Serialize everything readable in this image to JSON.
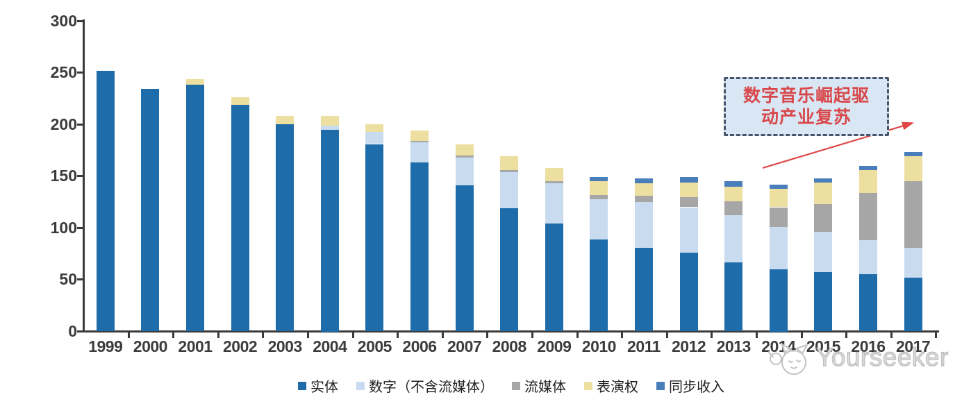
{
  "chart_data": {
    "type": "bar",
    "stacked": true,
    "title": "",
    "xlabel": "",
    "ylabel": "",
    "categories": [
      "1999",
      "2000",
      "2001",
      "2002",
      "2003",
      "2004",
      "2005",
      "2006",
      "2007",
      "2008",
      "2009",
      "2010",
      "2011",
      "2012",
      "2013",
      "2014",
      "2015",
      "2016",
      "2017"
    ],
    "series": [
      {
        "name": "实体",
        "color": "#1E6CA9",
        "values": [
          252,
          234,
          238,
          219,
          200,
          195,
          181,
          163,
          141,
          119,
          104,
          89,
          81,
          76,
          67,
          60,
          57,
          55,
          52
        ]
      },
      {
        "name": "数字（不含流媒体）",
        "color": "#C9DCEF",
        "values": [
          0,
          0,
          0,
          0,
          0,
          4,
          12,
          20,
          27,
          35,
          39,
          39,
          44,
          44,
          45,
          41,
          39,
          33,
          29
        ]
      },
      {
        "name": "流媒体",
        "color": "#A6A6A6",
        "values": [
          0,
          0,
          0,
          0,
          0,
          0,
          0,
          1,
          2,
          2,
          2,
          4,
          6,
          10,
          14,
          19,
          27,
          46,
          64
        ]
      },
      {
        "name": "表演权",
        "color": "#EDDFA0",
        "values": [
          0,
          0,
          6,
          7,
          8,
          9,
          7,
          10,
          11,
          13,
          13,
          13,
          12,
          14,
          14,
          18,
          21,
          22,
          24
        ]
      },
      {
        "name": "同步收入",
        "color": "#4A7EBB",
        "values": [
          0,
          0,
          0,
          0,
          0,
          0,
          0,
          0,
          0,
          0,
          0,
          4,
          5,
          5,
          5,
          4,
          4,
          4,
          4
        ]
      }
    ],
    "ylim": [
      0,
      300
    ],
    "yticks": [
      0,
      50,
      100,
      150,
      200,
      250,
      300
    ],
    "grid": false,
    "legend_position": "bottom"
  },
  "annotation": {
    "line1": "数字音乐崛起驱",
    "line2": "动产业复苏"
  },
  "watermark": {
    "brand": "Yourseeker"
  },
  "colors": {
    "annotation_text": "#D8484A",
    "annotation_bg": "#D9E6F3",
    "annotation_border": "#44546A",
    "arrow": "#E04545",
    "axis": "#3A3A3A"
  }
}
